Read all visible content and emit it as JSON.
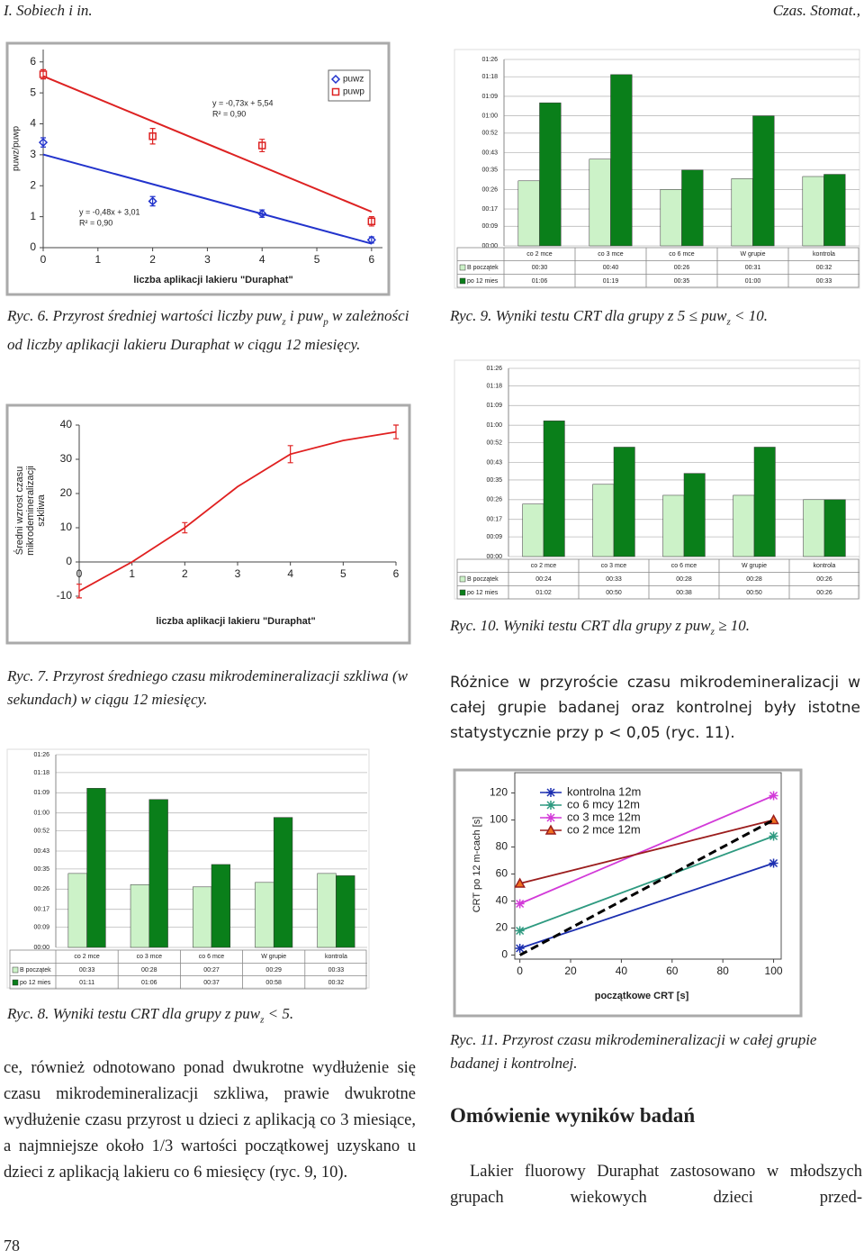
{
  "header": {
    "left": "I. Sobiech i in.",
    "right": "Czas. Stomat.,"
  },
  "chart_data": [
    {
      "type": "scatter",
      "ylabel": "puwz/puwp",
      "xlabel": "liczba aplikacji lakieru \"Duraphat\"",
      "xlim": [
        0,
        6.2
      ],
      "ylim": [
        0,
        6.4
      ],
      "xticks": [
        0,
        1,
        2,
        3,
        4,
        5,
        6
      ],
      "yticks": [
        0,
        1,
        2,
        3,
        4,
        5,
        6
      ],
      "legend": "upper right",
      "series": [
        {
          "name": "puwz",
          "color": "#2233cc",
          "marker": "diamond",
          "x": [
            0,
            2,
            4,
            6
          ],
          "values": [
            3.4,
            1.5,
            1.1,
            0.25
          ],
          "errors": [
            0.15,
            0.15,
            0.12,
            0.1
          ],
          "trendline": {
            "label": "y = -0,48x + 3,01",
            "r2_label": "R² = 0,90",
            "slope": -0.48,
            "intercept": 3.01
          }
        },
        {
          "name": "puwp",
          "color": "#dd2222",
          "marker": "square",
          "x": [
            0,
            2,
            4,
            6
          ],
          "values": [
            5.6,
            3.6,
            3.3,
            0.85
          ],
          "errors": [
            0.15,
            0.25,
            0.2,
            0.15
          ],
          "trendline": {
            "label": "y = -0,73x + 5,54",
            "r2_label": "R² = 0,90",
            "slope": -0.73,
            "intercept": 5.54
          }
        }
      ]
    },
    {
      "type": "bar",
      "categories": [
        "co 2 mce",
        "co 3 mce",
        "co 6 mce",
        "W grupie",
        "kontrola"
      ],
      "ylim": [
        0,
        86
      ],
      "grid": true,
      "yticks": [
        {
          "value": 0,
          "label": "00:00"
        },
        {
          "value": 9,
          "label": "00:09"
        },
        {
          "value": 17,
          "label": "00:17"
        },
        {
          "value": 26,
          "label": "00:26"
        },
        {
          "value": 35,
          "label": "00:35"
        },
        {
          "value": 43,
          "label": "00:43"
        },
        {
          "value": 52,
          "label": "00:52"
        },
        {
          "value": 60,
          "label": "01:00"
        },
        {
          "value": 69,
          "label": "01:09"
        },
        {
          "value": 78,
          "label": "01:18"
        },
        {
          "value": 86,
          "label": "01:26"
        }
      ],
      "series": [
        {
          "name": "B początek",
          "color": "#ccf2c8",
          "values": [
            30,
            40,
            26,
            31,
            32
          ],
          "value_labels": [
            "00:30",
            "00:40",
            "00:26",
            "00:31",
            "00:32"
          ]
        },
        {
          "name": "po 12 mies",
          "color": "#0a7f1a",
          "values": [
            66,
            79,
            35,
            60,
            33
          ],
          "value_labels": [
            "01:06",
            "01:19",
            "00:35",
            "01:00",
            "00:33"
          ]
        }
      ]
    },
    {
      "type": "line",
      "ylabel": [
        "Średni wzrost czasu",
        "mikrodemineralizacji",
        "szkliwa"
      ],
      "xlabel": "liczba aplikacji lakieru \"Duraphat\"",
      "xlim": [
        0,
        6
      ],
      "ylim": [
        -10,
        40
      ],
      "xticks": [
        0,
        1,
        2,
        3,
        4,
        5,
        6
      ],
      "yticks": [
        -10,
        0,
        10,
        20,
        30,
        40
      ],
      "series": [
        {
          "color": "#e02020",
          "x": [
            0,
            1,
            2,
            3,
            4,
            5,
            6
          ],
          "values": [
            -8.5,
            0,
            10,
            22,
            31.5,
            35.5,
            38
          ],
          "errors": [
            2,
            null,
            1.5,
            null,
            2.5,
            null,
            2
          ]
        }
      ]
    },
    {
      "type": "bar",
      "categories": [
        "co 2 mce",
        "co 3 mce",
        "co 6 mce",
        "W grupie",
        "kontrola"
      ],
      "ylim": [
        0,
        86
      ],
      "grid": true,
      "yticks": [
        {
          "value": 0,
          "label": "00:00"
        },
        {
          "value": 9,
          "label": "00:09"
        },
        {
          "value": 17,
          "label": "00:17"
        },
        {
          "value": 26,
          "label": "00:26"
        },
        {
          "value": 35,
          "label": "00:35"
        },
        {
          "value": 43,
          "label": "00:43"
        },
        {
          "value": 52,
          "label": "00:52"
        },
        {
          "value": 60,
          "label": "01:00"
        },
        {
          "value": 69,
          "label": "01:09"
        },
        {
          "value": 78,
          "label": "01:18"
        },
        {
          "value": 86,
          "label": "01:26"
        }
      ],
      "series": [
        {
          "name": "B początek",
          "color": "#ccf2c8",
          "values": [
            24,
            33,
            28,
            28,
            26
          ],
          "value_labels": [
            "00:24",
            "00:33",
            "00:28",
            "00:28",
            "00:26"
          ]
        },
        {
          "name": "po 12 mies",
          "color": "#0a7f1a",
          "values": [
            62,
            50,
            38,
            50,
            26
          ],
          "value_labels": [
            "01:02",
            "00:50",
            "00:38",
            "00:50",
            "00:26"
          ]
        }
      ]
    },
    {
      "type": "bar",
      "categories": [
        "co 2 mce",
        "co 3 mce",
        "co 6 mce",
        "W grupie",
        "kontrola"
      ],
      "ylim": [
        0,
        86
      ],
      "grid": true,
      "yticks": [
        {
          "value": 0,
          "label": "00:00"
        },
        {
          "value": 9,
          "label": "00:09"
        },
        {
          "value": 17,
          "label": "00:17"
        },
        {
          "value": 26,
          "label": "00:26"
        },
        {
          "value": 35,
          "label": "00:35"
        },
        {
          "value": 43,
          "label": "00:43"
        },
        {
          "value": 52,
          "label": "00:52"
        },
        {
          "value": 60,
          "label": "01:00"
        },
        {
          "value": 69,
          "label": "01:09"
        },
        {
          "value": 78,
          "label": "01:18"
        },
        {
          "value": 86,
          "label": "01:26"
        }
      ],
      "series": [
        {
          "name": "B początek",
          "color": "#ccf2c8",
          "values": [
            33,
            28,
            27,
            29,
            33
          ],
          "value_labels": [
            "00:33",
            "00:28",
            "00:27",
            "00:29",
            "00:33"
          ]
        },
        {
          "name": "po 12 mies",
          "color": "#0a7f1a",
          "values": [
            71,
            66,
            37,
            58,
            32
          ],
          "value_labels": [
            "01:11",
            "01:06",
            "00:37",
            "00:58",
            "00:32"
          ]
        }
      ]
    },
    {
      "type": "line",
      "ylabel": [
        "CRT po 12 m-cach [s]"
      ],
      "xlabel": "początkowe CRT [s]",
      "legend": "upper left",
      "xlim": [
        -2,
        103
      ],
      "ylim": [
        -3,
        135
      ],
      "xticks": [
        0,
        20,
        40,
        60,
        80,
        100
      ],
      "yticks": [
        0,
        20,
        40,
        60,
        80,
        100,
        120
      ],
      "series": [
        {
          "name": "kontrolna 12m",
          "color": "#1c2fb0",
          "marker": "asterisk",
          "x": [
            0,
            100
          ],
          "values": [
            5,
            68
          ]
        },
        {
          "name": "co 6 mcy 12m",
          "color": "#2e9a80",
          "marker": "asterisk",
          "x": [
            0,
            100
          ],
          "values": [
            18,
            88
          ]
        },
        {
          "name": "co 3 mce 12m",
          "color": "#d23ad8",
          "marker": "asterisk",
          "x": [
            0,
            100
          ],
          "values": [
            38,
            118
          ]
        },
        {
          "name": "co 2 mce 12m",
          "color": "#9b1d1d",
          "marker": "triangle",
          "marker_color": "#f07020",
          "x": [
            0,
            100
          ],
          "values": [
            53,
            100
          ]
        },
        {
          "color": "#000000",
          "linestyle": "dashed",
          "x": [
            0,
            100
          ],
          "values": [
            0,
            100
          ]
        }
      ]
    }
  ],
  "captions": {
    "ryc6": [
      "Ryc. 6. Przyrost średniej wartości liczby puw",
      "z",
      " i puw",
      "p",
      " w zależności od liczby aplikacji lakieru Duraphat w ciągu 12 miesięcy."
    ],
    "ryc9": [
      "Ryc. 9. Wyniki testu CRT dla grupy z 5 ≤ puw",
      "z",
      " < 10."
    ],
    "ryc10": [
      "Ryc. 10. Wyniki testu CRT dla grupy z puw",
      "z",
      " ≥ 10."
    ],
    "ryc7": [
      "Ryc. 7. Przyrost średniego czasu mikrodemineralizacji szkliwa (w sekundach) w ciągu 12 miesięcy."
    ],
    "ryc8": [
      "Ryc. 8. Wyniki testu CRT dla grupy z puw",
      "z",
      " < 5."
    ],
    "ryc11": [
      "Ryc. 11. Przyrost czasu mikrodemineralizacji w całej grupie badanej i kontrolnej."
    ]
  },
  "text": {
    "paragraph_right": "Różnice w przyroście czasu mikrodemineralizacji w całej grupie badanej oraz kontrolnej były istotne statystycznie przy p < 0,05 (ryc. 11).",
    "paragraph_left": "ce, również odnotowano ponad dwukrotne wydłużenie się czasu mikrodemineralizacji szkliwa, prawie dwukrotne wydłużenie czasu przyrost u dzieci z aplikacją co 3 miesiące, a najmniejsze około 1/3 wartości początkowej uzyskano u dzieci z aplikacją lakieru co 6 miesięcy (ryc. 9, 10).",
    "heading": "Omówienie wyników badań",
    "paragraph_last": "Lakier fluorowy Duraphat zastosowano w młodszych grupach wiekowych dzieci przed-"
  },
  "page_number": "78"
}
